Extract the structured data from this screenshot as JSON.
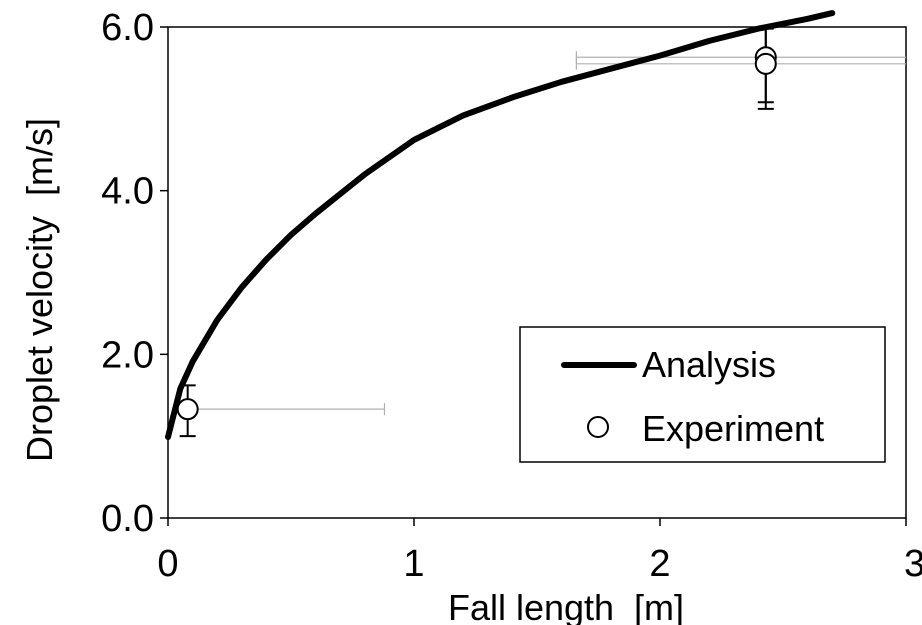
{
  "chart_data": {
    "type": "scatter",
    "xlabel": "Fall length  [m]",
    "ylabel": "Droplet velocity  [m/s]",
    "xlim": [
      0,
      3
    ],
    "ylim": [
      0,
      6
    ],
    "x_ticks": [
      0,
      1,
      2,
      3
    ],
    "x_tick_labels": [
      "0",
      "1",
      "2",
      "3"
    ],
    "y_ticks": [
      0,
      2,
      4,
      6
    ],
    "y_tick_labels": [
      "0.0",
      "2.0",
      "4.0",
      "6.0"
    ],
    "grid": false,
    "legend_position": "bottom-right",
    "series": [
      {
        "name": "Analysis",
        "kind": "line",
        "color": "#000000",
        "x": [
          0.0,
          0.05,
          0.1,
          0.2,
          0.3,
          0.4,
          0.5,
          0.6,
          0.8,
          1.0,
          1.2,
          1.4,
          1.6,
          1.8,
          2.0,
          2.2,
          2.4,
          2.6,
          2.7
        ],
        "y": [
          0.99,
          1.58,
          1.91,
          2.42,
          2.82,
          3.16,
          3.46,
          3.72,
          4.2,
          4.62,
          4.92,
          5.14,
          5.33,
          5.49,
          5.65,
          5.83,
          5.98,
          6.1,
          6.17
        ]
      },
      {
        "name": "Experiment",
        "kind": "marker",
        "color": "#ffffff",
        "points": [
          {
            "x": 0.08,
            "y": 1.33,
            "y_err_low": 0.33,
            "y_err_high": 0.29,
            "x_err_low": 0.0,
            "x_err_high": 0.8
          },
          {
            "x": 2.43,
            "y": 5.63,
            "y_err_low": 0.55,
            "y_err_high": 0.35,
            "x_err_low": 0.77,
            "x_err_high": 0.57
          },
          {
            "x": 2.43,
            "y": 5.55,
            "y_err_low": 0.55,
            "y_err_high": 0.45,
            "x_err_low": 0.77,
            "x_err_high": 0.57
          }
        ]
      }
    ]
  }
}
